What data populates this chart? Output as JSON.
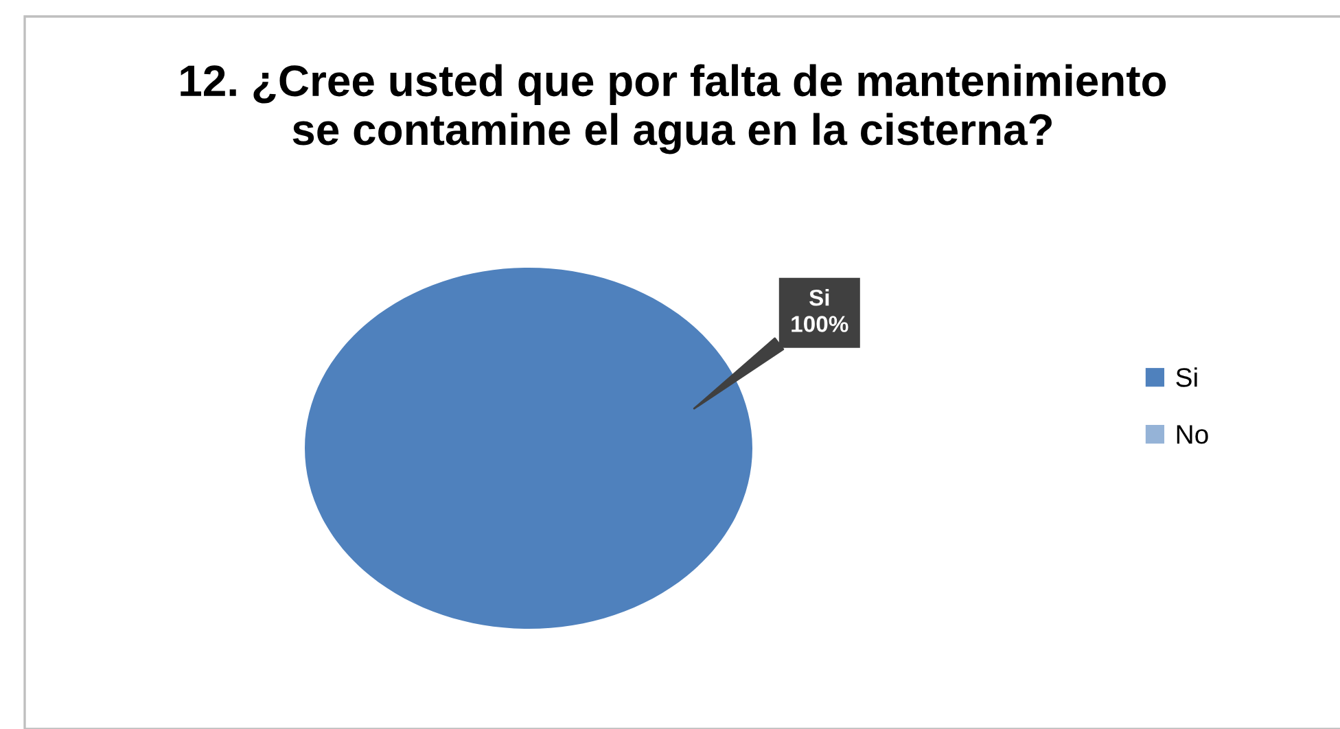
{
  "chart_data": {
    "type": "pie",
    "title": "12. ¿Cree usted que por falta de mantenimiento\nse contamine el agua en la cisterna?",
    "categories": [
      "Si",
      "No"
    ],
    "values": [
      100,
      0
    ],
    "colors": [
      "#4f81bd",
      "#95b3d7"
    ],
    "value_labels": [
      "100%",
      null
    ],
    "legend": "right"
  }
}
